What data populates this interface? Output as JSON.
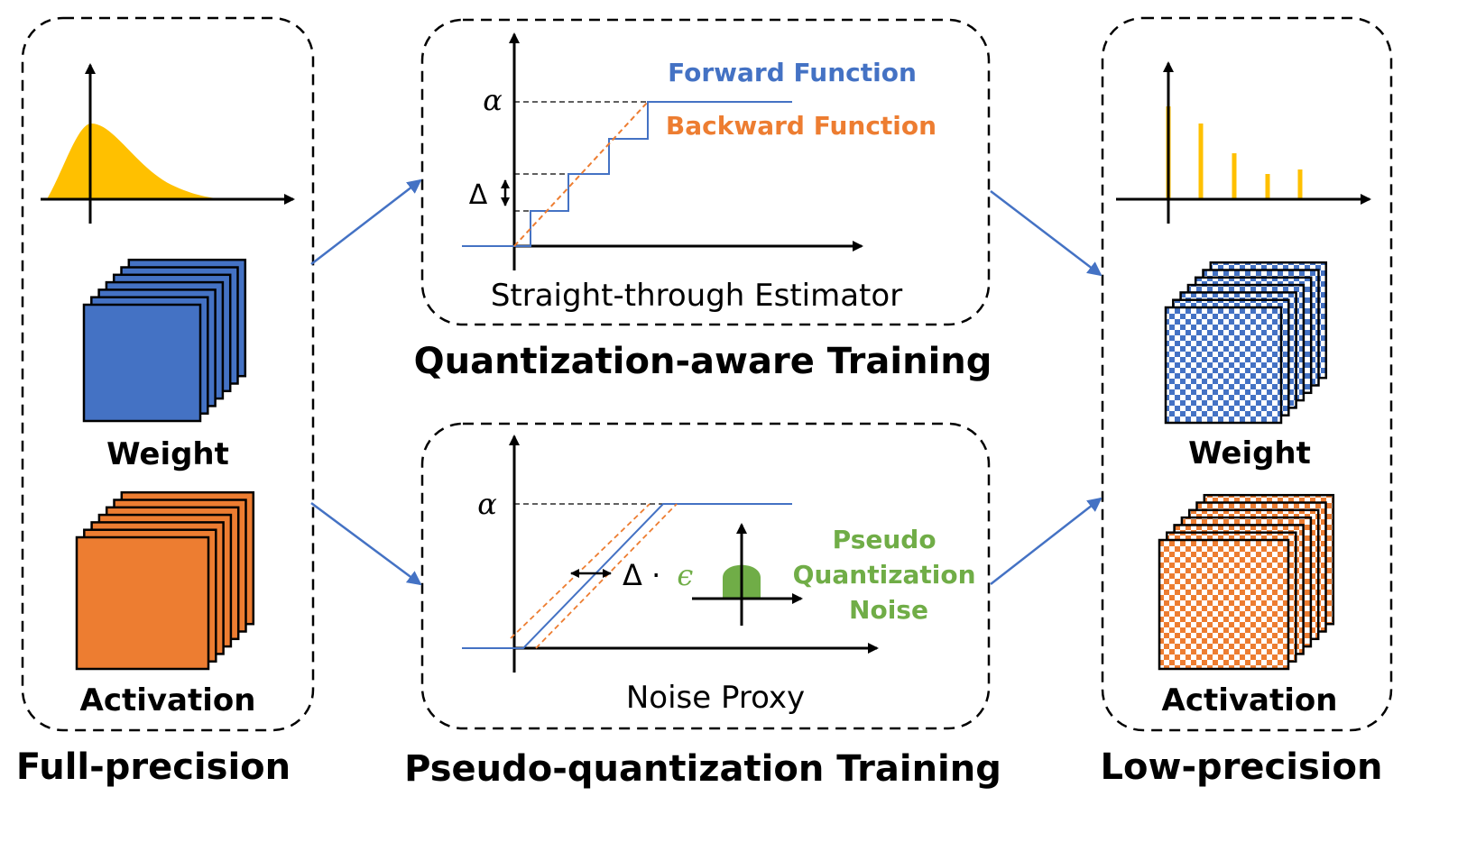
{
  "left_panel": {
    "weight_label": "Weight",
    "activation_label": "Activation",
    "caption": "Full-precision"
  },
  "ste_panel": {
    "title": "Straight-through Estimator",
    "forward_label": "Forward Function",
    "backward_label": "Backward Function",
    "alpha": "α",
    "delta": "Δ"
  },
  "qat_caption": "Quantization-aware Training",
  "noise_panel": {
    "title": "Noise Proxy",
    "alpha": "α",
    "delta_eps_prefix": "Δ ·",
    "epsilon": "ϵ",
    "noise_label_lines": [
      "Pseudo",
      "Quantization",
      "Noise"
    ]
  },
  "pqt_caption": "Pseudo-quantization Training",
  "right_panel": {
    "weight_label": "Weight",
    "activation_label": "Activation",
    "caption": "Low-precision"
  },
  "colors": {
    "blue": "#4472C4",
    "orange": "#ED7D31",
    "yellow": "#FFC000",
    "green": "#70AD47",
    "arrow_blue": "#4472C4",
    "line": "#000000"
  }
}
